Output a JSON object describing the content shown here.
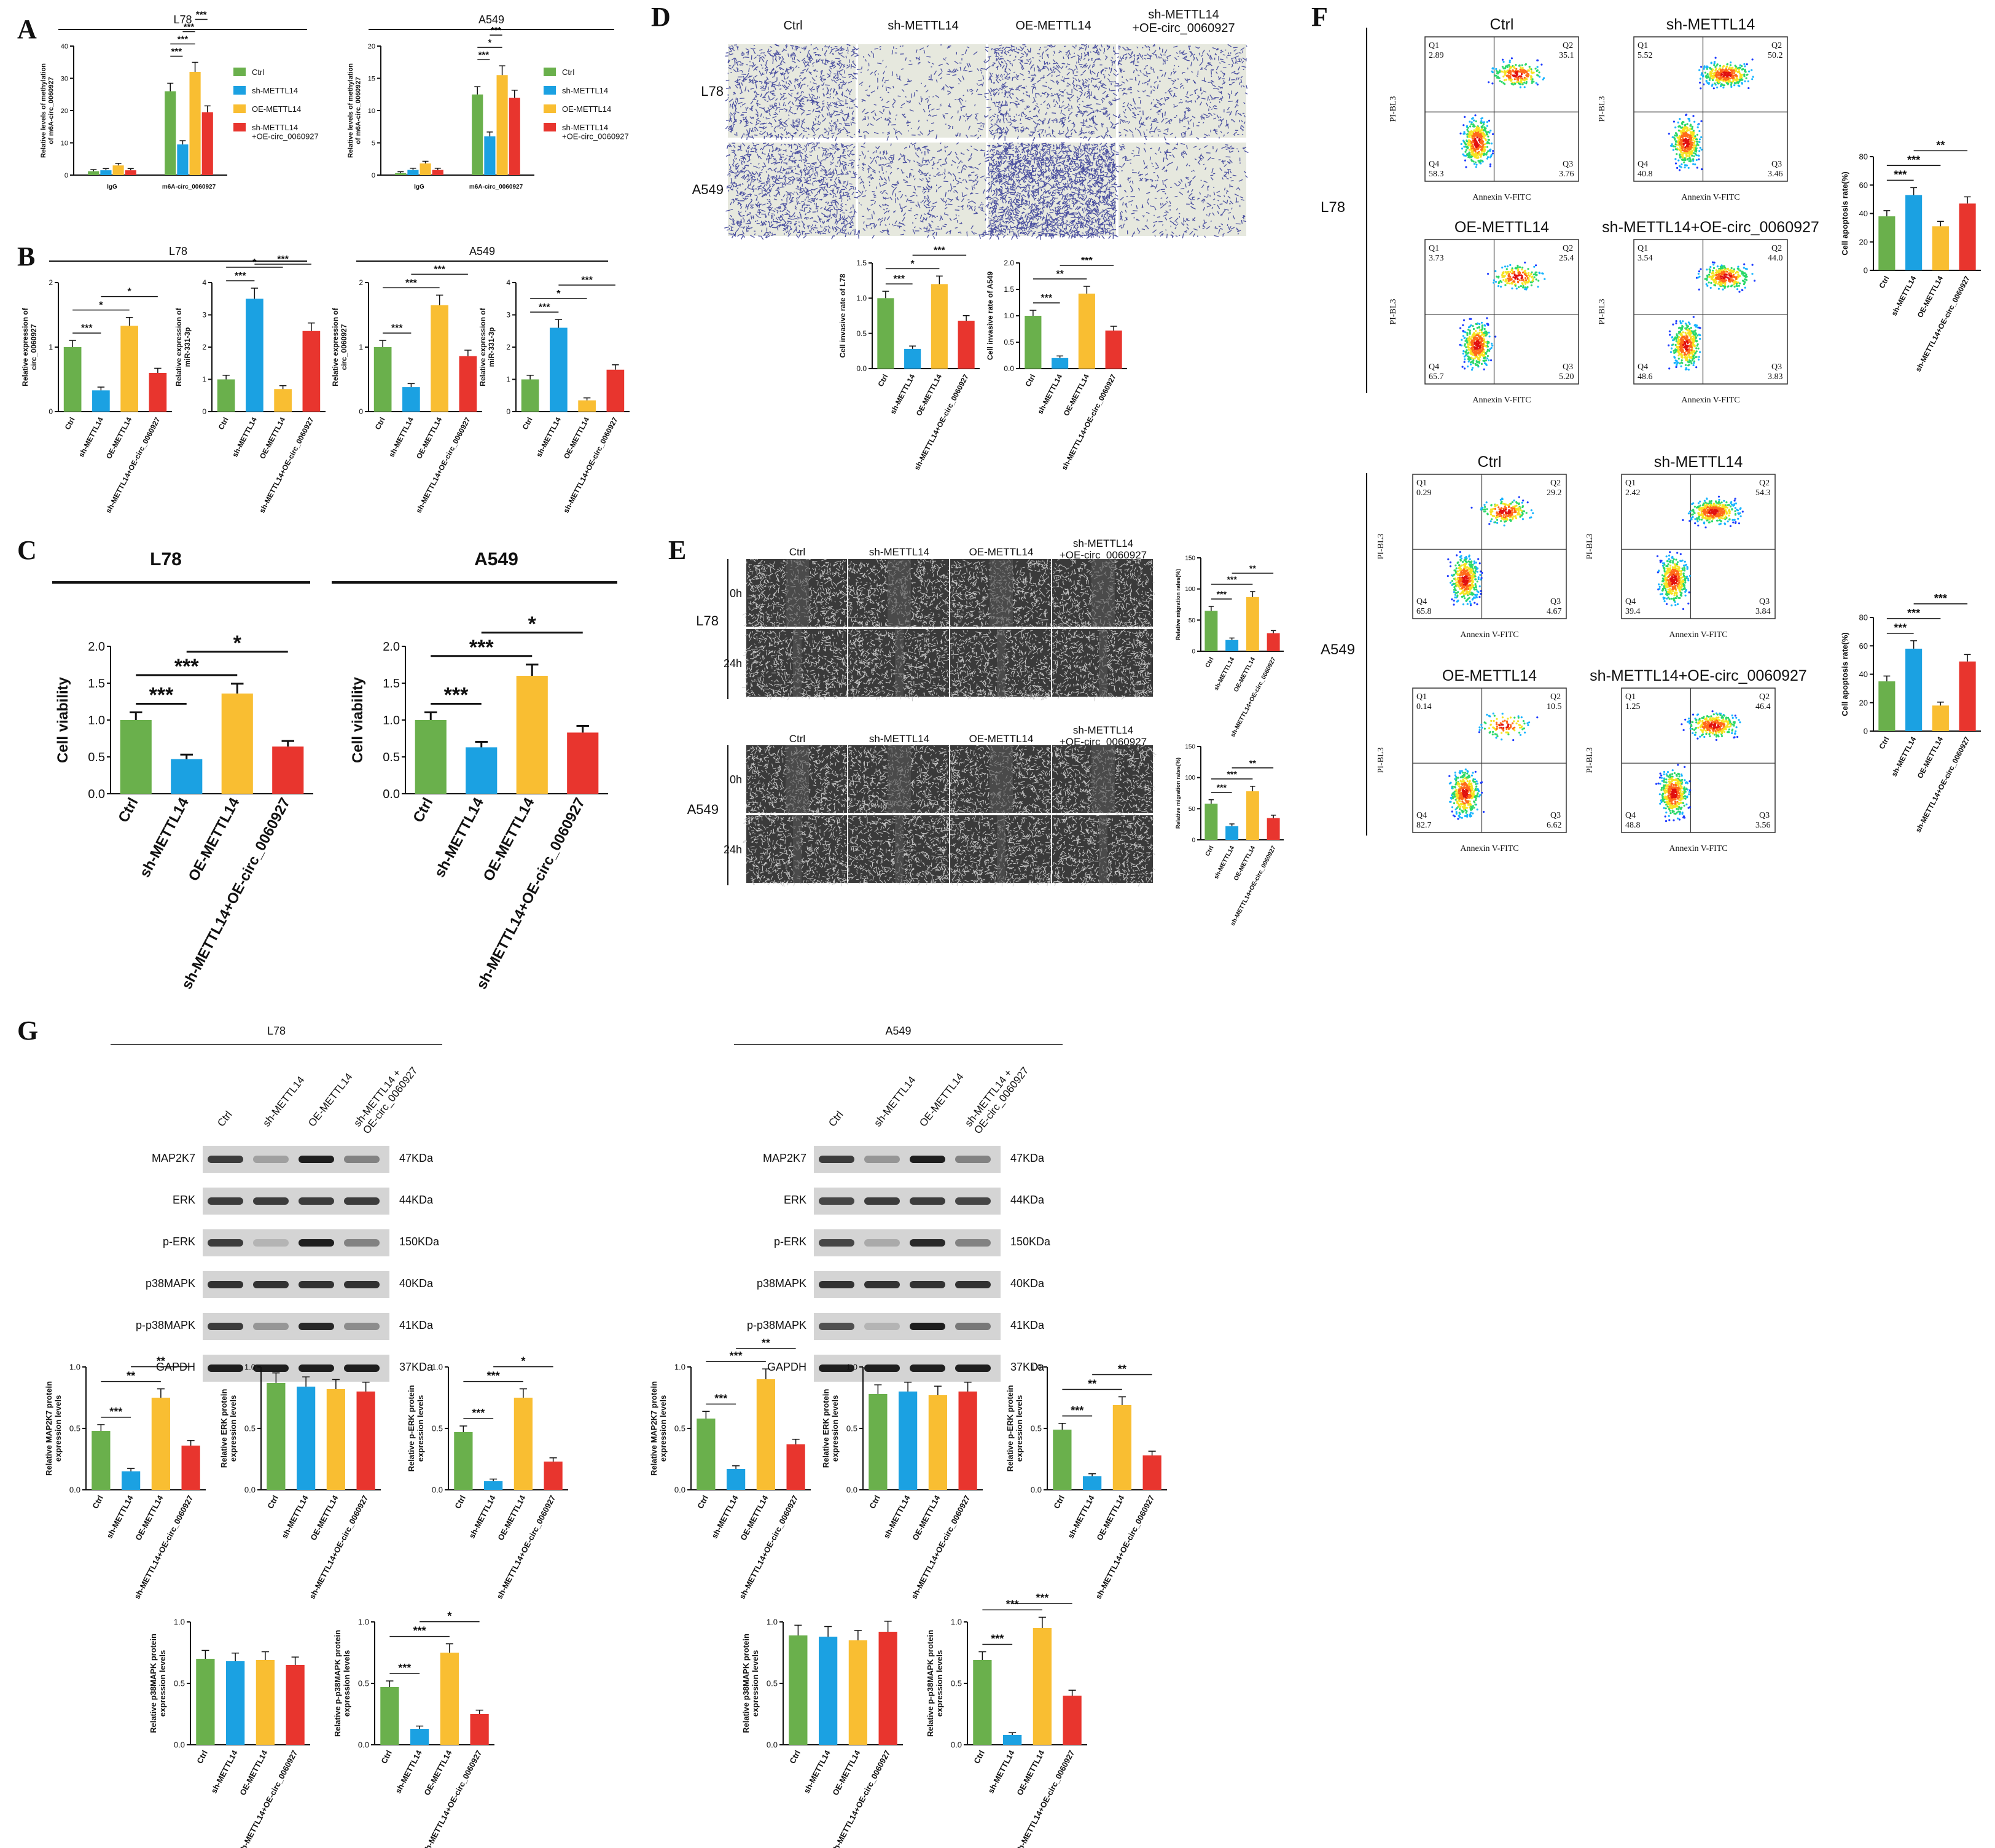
{
  "colors": {
    "Ctrl": "#6ab04c",
    "sh": "#1ba1e2",
    "OE": "#f9be32",
    "combo": "#e8352e"
  },
  "panels": {
    "A": "A",
    "B": "B",
    "C": "C",
    "D": "D",
    "E": "E",
    "F": "F",
    "G": "G"
  },
  "groups": [
    "Ctrl",
    "sh-METTL14",
    "OE-METTL14",
    "sh-METTL14+OE-circ_0060927"
  ],
  "lines": {
    "L78": "L78",
    "A549": "A549"
  },
  "legend_A": [
    "Ctrl",
    "sh-METTL14",
    "OE-METTL14",
    "sh-METTL14\n+OE-circ_0060927"
  ],
  "D": {
    "cols": [
      "Ctrl",
      "sh-METTL14",
      "OE-METTL14",
      "sh-METTL14\n+OE-circ_0060927"
    ],
    "rows": [
      "L78",
      "A549"
    ]
  },
  "E": {
    "cols": [
      "Ctrl",
      "sh-METTL14",
      "OE-METTL14",
      "sh-METTL14\n+OE-circ_0060927"
    ],
    "times": [
      "0h",
      "24h"
    ]
  },
  "F": {
    "xlabel": "Annexin V-FITC",
    "ylabel": "PI-BL3",
    "plots": [
      {
        "title": "Ctrl",
        "q1": "2.89",
        "q2": "35.1",
        "q3": "3.76",
        "q4": "58.3"
      },
      {
        "title": "sh-METTL14",
        "q1": "5.52",
        "q2": "50.2",
        "q3": "3.46",
        "q4": "40.8"
      },
      {
        "title": "OE-METTL14",
        "q1": "3.73",
        "q2": "25.4",
        "q3": "5.20",
        "q4": "65.7"
      },
      {
        "title": "sh-METTL14+OE-circ_0060927",
        "q1": "3.54",
        "q2": "44.0",
        "q3": "3.83",
        "q4": "48.6"
      },
      {
        "title": "Ctrl",
        "q1": "0.29",
        "q2": "29.2",
        "q3": "4.67",
        "q4": "65.8"
      },
      {
        "title": "sh-METTL14",
        "q1": "2.42",
        "q2": "54.3",
        "q3": "3.84",
        "q4": "39.4"
      },
      {
        "title": "OE-METTL14",
        "q1": "0.14",
        "q2": "10.5",
        "q3": "6.62",
        "q4": "82.7"
      },
      {
        "title": "sh-METTL14+OE-circ_0060927",
        "q1": "1.25",
        "q2": "46.4",
        "q3": "3.56",
        "q4": "48.8"
      }
    ]
  },
  "G": {
    "blot_rows": [
      {
        "name": "MAP2K7",
        "kda": "47KDa"
      },
      {
        "name": "ERK",
        "kda": "44KDa"
      },
      {
        "name": "p-ERK",
        "kda": "150KDa"
      },
      {
        "name": "p38MAPK",
        "kda": "40KDa"
      },
      {
        "name": "p-p38MAPK",
        "kda": "41KDa"
      },
      {
        "name": "GAPDH",
        "kda": "37KDa"
      }
    ],
    "lanes": [
      "Ctrl",
      "sh-METTL14",
      "OE-METTL14",
      "sh-METTL14 +\nOE-circ_0060927"
    ]
  },
  "chart_data": [
    {
      "id": "A_L78",
      "type": "bar",
      "title": "L78",
      "ylabel": "Relative levels of methylation\nof m6A-circ_0060927",
      "categories": [
        "IgG",
        "m6A-circ_0060927"
      ],
      "series": [
        {
          "name": "Ctrl",
          "values": [
            1.2,
            26
          ]
        },
        {
          "name": "sh-METTL14",
          "values": [
            1.5,
            9.5
          ]
        },
        {
          "name": "OE-METTL14",
          "values": [
            3,
            32
          ]
        },
        {
          "name": "sh-METTL14\n+OE-circ_0060927",
          "values": [
            1.5,
            19.5
          ]
        }
      ],
      "ylim": [
        0,
        40
      ],
      "yticks": [
        0,
        10,
        20,
        30,
        40
      ],
      "sig": [
        [
          "***",
          1,
          0,
          1,
          1
        ],
        [
          "***",
          1,
          0,
          1,
          2
        ],
        [
          "***",
          1,
          1,
          1,
          2
        ],
        [
          "***",
          1,
          2,
          1,
          3
        ]
      ]
    },
    {
      "id": "A_A549",
      "type": "bar",
      "title": "A549",
      "ylabel": "Relative levels of methylation\nof m6A-circ_0060927",
      "categories": [
        "IgG",
        "m6A-circ_0060927"
      ],
      "series": [
        {
          "name": "Ctrl",
          "values": [
            0.3,
            12.5
          ]
        },
        {
          "name": "sh-METTL14",
          "values": [
            0.8,
            6
          ]
        },
        {
          "name": "OE-METTL14",
          "values": [
            1.8,
            15.5
          ]
        },
        {
          "name": "sh-METTL14\n+OE-circ_0060927",
          "values": [
            0.8,
            12
          ]
        }
      ],
      "ylim": [
        0,
        20
      ],
      "yticks": [
        0,
        5,
        10,
        15,
        20
      ],
      "sig": [
        [
          "***",
          1,
          0,
          1,
          1
        ],
        [
          "*",
          1,
          0,
          1,
          2
        ],
        [
          "***",
          1,
          1,
          1,
          2
        ]
      ]
    },
    {
      "id": "B1",
      "type": "bar",
      "ylabel": "Relative expression of\ncirc_0060927",
      "values": [
        1.0,
        0.33,
        1.33,
        0.6
      ],
      "ylim": [
        0,
        2
      ],
      "yticks": [
        0,
        1,
        2
      ],
      "sig": [
        [
          "***",
          0,
          1
        ],
        [
          "*",
          0,
          2
        ],
        [
          "*",
          1,
          3
        ]
      ]
    },
    {
      "id": "B2",
      "type": "bar",
      "ylabel": "Relative expression of\nmiR-331-3p",
      "values": [
        1.0,
        3.5,
        0.7,
        2.5
      ],
      "ylim": [
        0,
        4
      ],
      "yticks": [
        0,
        1,
        2,
        3,
        4
      ],
      "sig": [
        [
          "***",
          0,
          1
        ],
        [
          "*",
          0,
          2
        ],
        [
          "***",
          1,
          3
        ]
      ]
    },
    {
      "id": "B3",
      "type": "bar",
      "ylabel": "Relative expression of\ncirc_0060927",
      "values": [
        1.0,
        0.38,
        1.65,
        0.86
      ],
      "ylim": [
        0,
        2
      ],
      "yticks": [
        0,
        1,
        2
      ],
      "sig": [
        [
          "***",
          0,
          1
        ],
        [
          "***",
          0,
          2
        ],
        [
          "***",
          1,
          3
        ]
      ]
    },
    {
      "id": "B4",
      "type": "bar",
      "ylabel": "Relative expression of\nmiR-331-3p",
      "values": [
        1.0,
        2.6,
        0.35,
        1.3
      ],
      "ylim": [
        0,
        4
      ],
      "yticks": [
        0,
        1,
        2,
        3,
        4
      ],
      "sig": [
        [
          "***",
          0,
          1
        ],
        [
          "*",
          0,
          2
        ],
        [
          "***",
          1,
          3
        ]
      ]
    },
    {
      "id": "C1",
      "type": "bar",
      "title": "L78",
      "ylabel": "Cell viability",
      "values": [
        1.0,
        0.47,
        1.36,
        0.64
      ],
      "ylim": [
        0,
        2.0
      ],
      "yticks": [
        0.0,
        0.5,
        1.0,
        1.5,
        2.0
      ],
      "sig": [
        [
          "***",
          0,
          1
        ],
        [
          "***",
          0,
          2
        ],
        [
          "*",
          1,
          3
        ]
      ]
    },
    {
      "id": "C2",
      "type": "bar",
      "title": "A549",
      "ylabel": "Cell viability",
      "values": [
        1.0,
        0.63,
        1.6,
        0.83
      ],
      "ylim": [
        0,
        2.0
      ],
      "yticks": [
        0.0,
        0.5,
        1.0,
        1.5,
        2.0
      ],
      "sig": [
        [
          "***",
          0,
          1
        ],
        [
          "***",
          0,
          2
        ],
        [
          "*",
          1,
          3
        ]
      ]
    },
    {
      "id": "D1",
      "type": "bar",
      "ylabel": "Cell invasive rate of L78",
      "values": [
        1.0,
        0.28,
        1.2,
        0.68
      ],
      "ylim": [
        0,
        1.5
      ],
      "yticks": [
        0.0,
        0.5,
        1.0,
        1.5
      ],
      "sig": [
        [
          "***",
          0,
          1
        ],
        [
          "*",
          0,
          2
        ],
        [
          "***",
          1,
          3
        ]
      ]
    },
    {
      "id": "D2",
      "type": "bar",
      "ylabel": "Cell invasive rate of A549",
      "values": [
        1.0,
        0.2,
        1.42,
        0.72
      ],
      "ylim": [
        0,
        2.0
      ],
      "yticks": [
        0.0,
        0.5,
        1.0,
        1.5,
        2.0
      ],
      "sig": [
        [
          "***",
          0,
          1
        ],
        [
          "**",
          0,
          2
        ],
        [
          "***",
          1,
          3
        ]
      ]
    },
    {
      "id": "E1",
      "type": "bar",
      "ylabel": "Relative migration rates(%)",
      "values": [
        65,
        18,
        87,
        29
      ],
      "ylim": [
        0,
        150
      ],
      "yticks": [
        0,
        50,
        100,
        150
      ],
      "sig": [
        [
          "***",
          0,
          1
        ],
        [
          "***",
          0,
          2
        ],
        [
          "**",
          1,
          3
        ]
      ]
    },
    {
      "id": "E2",
      "type": "bar",
      "ylabel": "Relative migration rates(%)",
      "values": [
        58,
        22,
        78,
        35
      ],
      "ylim": [
        0,
        150
      ],
      "yticks": [
        0,
        50,
        100,
        150
      ],
      "sig": [
        [
          "***",
          0,
          1
        ],
        [
          "***",
          0,
          2
        ],
        [
          "**",
          1,
          3
        ]
      ]
    },
    {
      "id": "F1",
      "type": "bar",
      "ylabel": "Cell apoptosis rate(%)",
      "values": [
        38,
        53,
        31,
        47
      ],
      "ylim": [
        0,
        80
      ],
      "yticks": [
        0,
        20,
        40,
        60,
        80
      ],
      "sig": [
        [
          "***",
          0,
          1
        ],
        [
          "***",
          0,
          2
        ],
        [
          "**",
          1,
          3
        ]
      ]
    },
    {
      "id": "F2",
      "type": "bar",
      "ylabel": "Cell apoptosis rate(%)",
      "values": [
        35,
        58,
        18,
        49
      ],
      "ylim": [
        0,
        80
      ],
      "yticks": [
        0,
        20,
        40,
        60,
        80
      ],
      "sig": [
        [
          "***",
          0,
          1
        ],
        [
          "***",
          0,
          2
        ],
        [
          "***",
          1,
          3
        ]
      ]
    },
    {
      "id": "G1",
      "type": "bar",
      "ylabel": "Relative MAP2K7 protein\nexpression levels",
      "values": [
        0.48,
        0.15,
        0.75,
        0.36
      ],
      "ylim": [
        0,
        1.0
      ],
      "yticks": [
        0.0,
        0.5,
        1.0
      ],
      "sig": [
        [
          "***",
          0,
          1
        ],
        [
          "**",
          0,
          2
        ],
        [
          "**",
          1,
          3
        ]
      ]
    },
    {
      "id": "G2",
      "type": "bar",
      "ylabel": "Relative ERK protein\nexpression levels",
      "values": [
        0.87,
        0.84,
        0.82,
        0.8
      ],
      "ylim": [
        0,
        1.0
      ],
      "yticks": [
        0.0,
        0.5,
        1.0
      ],
      "sig": []
    },
    {
      "id": "G3",
      "type": "bar",
      "ylabel": "Relative p-ERK protein\nexpression levels",
      "values": [
        0.47,
        0.07,
        0.75,
        0.23
      ],
      "ylim": [
        0,
        1.0
      ],
      "yticks": [
        0.0,
        0.5,
        1.0
      ],
      "sig": [
        [
          "***",
          0,
          1
        ],
        [
          "***",
          0,
          2
        ],
        [
          "*",
          1,
          3
        ]
      ]
    },
    {
      "id": "G4",
      "type": "bar",
      "ylabel": "Relative p38MAPK protein\nexpression levels",
      "values": [
        0.7,
        0.68,
        0.69,
        0.65
      ],
      "ylim": [
        0,
        1.0
      ],
      "yticks": [
        0.0,
        0.5,
        1.0
      ],
      "sig": []
    },
    {
      "id": "G5",
      "type": "bar",
      "ylabel": "Relative p-p38MAPK protein\nexpression levels",
      "values": [
        0.47,
        0.13,
        0.75,
        0.25
      ],
      "ylim": [
        0,
        1.0
      ],
      "yticks": [
        0.0,
        0.5,
        1.0
      ],
      "sig": [
        [
          "***",
          0,
          1
        ],
        [
          "***",
          0,
          2
        ],
        [
          "*",
          1,
          3
        ]
      ]
    },
    {
      "id": "G6",
      "type": "bar",
      "ylabel": "Relative MAP2K7 protein\nexpression levels",
      "values": [
        0.58,
        0.17,
        0.9,
        0.37
      ],
      "ylim": [
        0,
        1.0
      ],
      "yticks": [
        0.0,
        0.5,
        1.0
      ],
      "sig": [
        [
          "***",
          0,
          1
        ],
        [
          "***",
          0,
          2
        ],
        [
          "**",
          1,
          3
        ]
      ]
    },
    {
      "id": "G7",
      "type": "bar",
      "ylabel": "Relative ERK protein\nexpression levels",
      "values": [
        0.78,
        0.8,
        0.77,
        0.8
      ],
      "ylim": [
        0,
        1.0
      ],
      "yticks": [
        0.0,
        0.5,
        1.0
      ],
      "sig": []
    },
    {
      "id": "G8",
      "type": "bar",
      "ylabel": "Relative p-ERK protein\nexpression levels",
      "values": [
        0.49,
        0.11,
        0.69,
        0.28
      ],
      "ylim": [
        0,
        1.0
      ],
      "yticks": [
        0.0,
        0.5,
        1.0
      ],
      "sig": [
        [
          "***",
          0,
          1
        ],
        [
          "**",
          0,
          2
        ],
        [
          "**",
          1,
          3
        ]
      ]
    },
    {
      "id": "G9",
      "type": "bar",
      "ylabel": "Relative p38MAPK protein\nexpression levels",
      "values": [
        0.89,
        0.88,
        0.85,
        0.92
      ],
      "ylim": [
        0,
        1.0
      ],
      "yticks": [
        0.0,
        0.5,
        1.0
      ],
      "sig": []
    },
    {
      "id": "G10",
      "type": "bar",
      "ylabel": "Relative p-p38MAPK protein\nexpression levels",
      "values": [
        0.69,
        0.08,
        0.95,
        0.4
      ],
      "ylim": [
        0,
        1.0
      ],
      "yticks": [
        0.0,
        0.5,
        1.0
      ],
      "sig": [
        [
          "***",
          0,
          1
        ],
        [
          "***",
          0,
          2
        ],
        [
          "***",
          1,
          3
        ]
      ]
    }
  ]
}
